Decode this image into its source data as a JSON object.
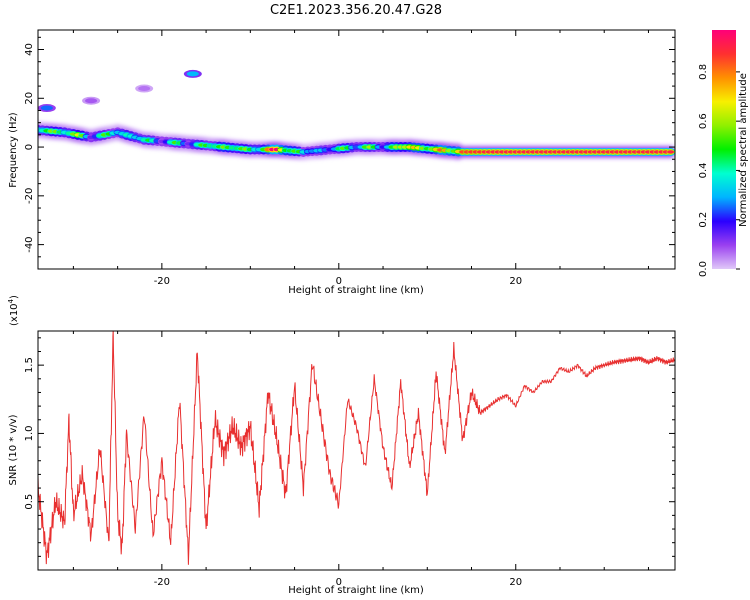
{
  "title": "C2E1.2023.356.20.47.G28",
  "colorbar": {
    "label": "Normalized spectral amplitude",
    "ticks": [
      "0.0",
      "0.2",
      "0.4",
      "0.6",
      "0.8"
    ],
    "tick_values": [
      0.0,
      0.2,
      0.4,
      0.6,
      0.8
    ],
    "range": [
      0.0,
      0.97
    ],
    "gradient": [
      "#e0c8f8",
      "#9a40f0",
      "#2a00ff",
      "#00b4ff",
      "#00ffd0",
      "#00f000",
      "#90f000",
      "#f8f000",
      "#ff9000",
      "#ff3030",
      "#ff0078"
    ]
  },
  "chart_data": [
    {
      "type": "heatmap",
      "title": "C2E1.2023.356.20.47.G28",
      "xlabel": "Height of straight line (km)",
      "ylabel": "Frequency (Hz)",
      "xlim": [
        -34,
        38
      ],
      "ylim": [
        -50,
        48
      ],
      "x_ticks": [
        -20,
        0,
        20
      ],
      "x_tick_labels": [
        "-20",
        "0",
        "20"
      ],
      "y_ticks": [
        -40,
        -20,
        0,
        20,
        40
      ],
      "y_tick_labels": [
        "-40",
        "-20",
        "0",
        "20",
        "40"
      ],
      "grid": false,
      "ridge": {
        "x": [
          -34,
          -31,
          -28,
          -25,
          -22,
          -19,
          -16,
          -13,
          -10,
          -7,
          -4,
          -1,
          2,
          5,
          8,
          11,
          14,
          17,
          20,
          23,
          26,
          29,
          32,
          35,
          37
        ],
        "frequency": [
          7,
          6,
          4,
          6,
          3,
          2,
          1,
          0,
          -1,
          -1,
          -2,
          -1,
          0,
          0,
          0,
          -1,
          -2,
          -2,
          -2,
          -2,
          -2,
          -2,
          -2,
          -2,
          -2
        ],
        "amplitude": [
          0.4,
          0.55,
          0.35,
          0.4,
          0.35,
          0.3,
          0.35,
          0.55,
          0.4,
          0.85,
          0.3,
          0.3,
          0.45,
          0.35,
          0.7,
          0.6,
          0.85,
          0.9,
          0.9,
          0.9,
          0.9,
          0.9,
          0.9,
          0.9,
          0.9
        ]
      },
      "blobs": [
        {
          "x": -33,
          "y": 16,
          "amplitude": 0.25
        },
        {
          "x": -16.5,
          "y": 30,
          "amplitude": 0.3
        },
        {
          "x": -28,
          "y": 19,
          "amplitude": 0.08
        },
        {
          "x": -22,
          "y": 24,
          "amplitude": 0.06
        }
      ]
    },
    {
      "type": "line",
      "title": "",
      "xlabel": "Height of straight line (km)",
      "ylabel": "SNR (10 * v/v)",
      "scale_note": "(x10^4)",
      "xlim": [
        -34,
        38
      ],
      "ylim": [
        0.0,
        1.75
      ],
      "x_ticks": [
        -20,
        0,
        20
      ],
      "x_tick_labels": [
        "-20",
        "0",
        "20"
      ],
      "y_ticks": [
        0.5,
        1.0,
        1.5
      ],
      "y_tick_labels": [
        "0.5",
        "1.0",
        "1.5"
      ],
      "grid": false,
      "series": [
        {
          "color": "#e83030",
          "x": [
            -34,
            -33,
            -32,
            -31,
            -30.5,
            -30,
            -29,
            -28,
            -27,
            -26,
            -25.5,
            -25,
            -24.5,
            -24,
            -23,
            -22,
            -21,
            -20,
            -19,
            -18,
            -17,
            -16,
            -15,
            -14,
            -13,
            -12,
            -11,
            -10,
            -9,
            -8,
            -7,
            -6,
            -5,
            -4,
            -3,
            -2,
            -1,
            0,
            1,
            2,
            3,
            4,
            5,
            6,
            7,
            8,
            9,
            10,
            11,
            12,
            13,
            14,
            15,
            16,
            17,
            18,
            19,
            20,
            21,
            22,
            23,
            24,
            25,
            26,
            27,
            28,
            29,
            30,
            31,
            32,
            33,
            34,
            35,
            36,
            37,
            38
          ],
          "values": [
            0.6,
            0.1,
            0.5,
            0.35,
            1.1,
            0.4,
            0.7,
            0.25,
            0.9,
            0.2,
            1.72,
            0.4,
            0.15,
            1.0,
            0.3,
            1.15,
            0.25,
            0.8,
            0.2,
            1.25,
            0.1,
            1.6,
            0.3,
            1.1,
            0.85,
            1.05,
            0.9,
            1.05,
            0.45,
            1.3,
            0.95,
            0.55,
            1.35,
            0.6,
            1.52,
            1.1,
            0.7,
            0.48,
            1.25,
            1.05,
            0.75,
            1.4,
            0.9,
            0.6,
            1.38,
            0.75,
            1.15,
            0.55,
            1.45,
            0.85,
            1.62,
            0.95,
            1.3,
            1.15,
            1.2,
            1.25,
            1.28,
            1.2,
            1.35,
            1.3,
            1.38,
            1.38,
            1.48,
            1.45,
            1.5,
            1.42,
            1.48,
            1.5,
            1.52,
            1.53,
            1.54,
            1.55,
            1.52,
            1.55,
            1.52,
            1.54
          ]
        }
      ]
    }
  ]
}
